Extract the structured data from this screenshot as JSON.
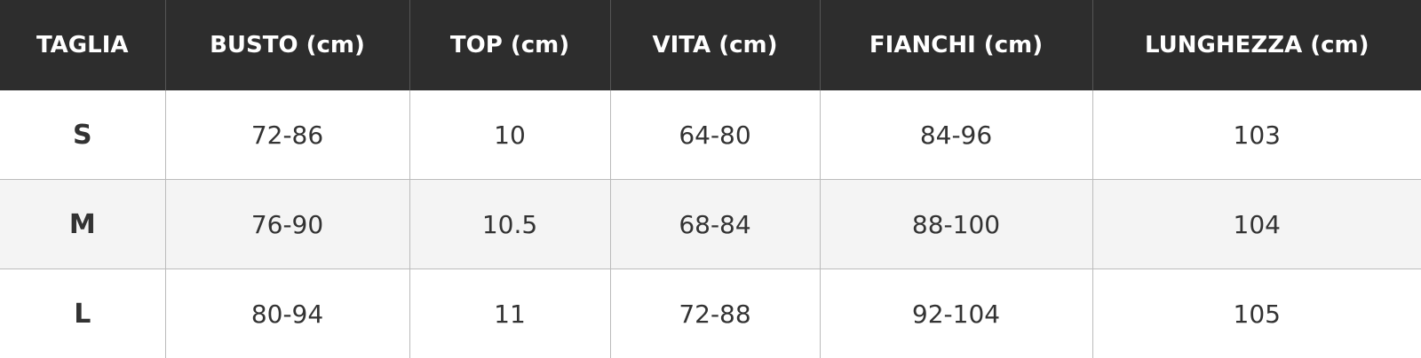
{
  "table": {
    "header": [
      "TAGLIA",
      "BUSTO (cm)",
      "TOP (cm)",
      "VITA (cm)",
      "FIANCHI (cm)",
      "LUNGHEZZA (cm)"
    ],
    "rows": [
      [
        "S",
        "72-86",
        "10",
        "64-80",
        "84-96",
        "103"
      ],
      [
        "M",
        "76-90",
        "10.5",
        "68-84",
        "88-100",
        "104"
      ],
      [
        "L",
        "80-94",
        "11",
        "72-88",
        "92-104",
        "105"
      ]
    ]
  }
}
